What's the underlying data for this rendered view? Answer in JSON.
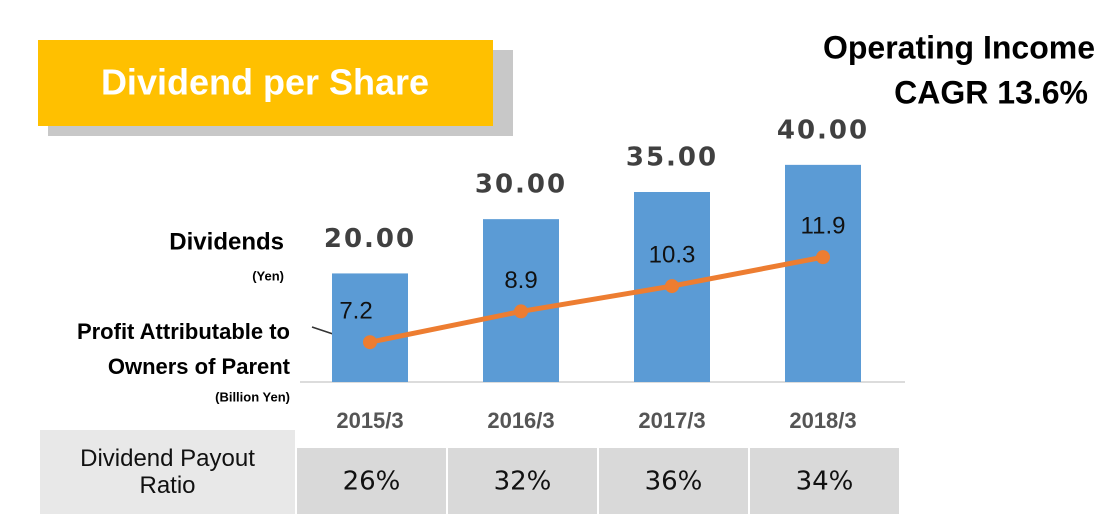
{
  "chart_data": {
    "type": "bar",
    "title": "Dividend per Share",
    "annotation": [
      "Operating Income",
      "CAGR 13.6%"
    ],
    "categories": [
      "2015/3",
      "2016/3",
      "2017/3",
      "2018/3"
    ],
    "ylim": [
      0,
      70
    ],
    "y2lim": [
      5,
      26
    ],
    "series": [
      {
        "name": "Dividends",
        "unit": "(Yen)",
        "type": "bar",
        "color": "#5b9bd5",
        "values": [
          20,
          30,
          35,
          40
        ],
        "value_labels": [
          "20.00",
          "30.00",
          "35.00",
          "40.00"
        ]
      },
      {
        "name": [
          "Profit Attributable to",
          "Owners of Parent"
        ],
        "unit": "(Billion Yen)",
        "type": "line",
        "axis": "y2",
        "color": "#ed7d31",
        "values": [
          7.2,
          8.9,
          10.3,
          11.9
        ]
      }
    ],
    "table": {
      "label": "Dividend Payout Ratio",
      "values": [
        26,
        32,
        36,
        34
      ],
      "value_labels": [
        "26%",
        "32%",
        "36%",
        "34%"
      ]
    }
  }
}
